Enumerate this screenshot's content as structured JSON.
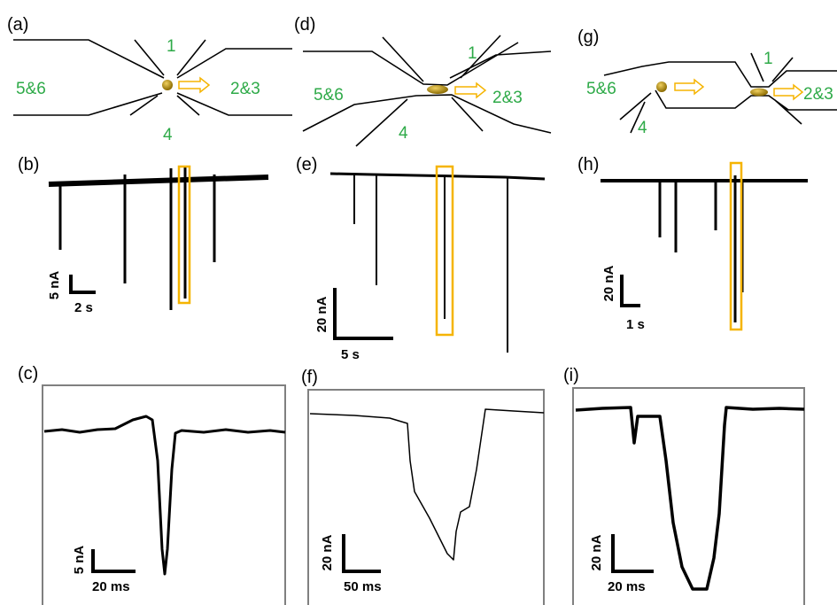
{
  "panels": {
    "a": {
      "label": "(a)",
      "top": "1",
      "left": "5&6",
      "right": "2&3",
      "bottom": "4"
    },
    "b": {
      "label": "(b)",
      "current": "5 nA",
      "time": "2 s"
    },
    "c": {
      "label": "(c)",
      "current": "5 nA",
      "time": "20 ms"
    },
    "d": {
      "label": "(d)",
      "top": "1",
      "left": "5&6",
      "right": "2&3",
      "bottom": "4"
    },
    "e": {
      "label": "(e)",
      "current": "20 nA",
      "time": "5 s"
    },
    "f": {
      "label": "(f)",
      "current": "20 nA",
      "time": "50 ms"
    },
    "g": {
      "label": "(g)",
      "top": "1",
      "left": "5&6",
      "right": "2&3",
      "bottom": "4"
    },
    "h": {
      "label": "(h)",
      "current": "20 nA",
      "time": "1 s"
    },
    "i": {
      "label": "(i)",
      "current": "20 nA",
      "time": "20 ms"
    }
  }
}
